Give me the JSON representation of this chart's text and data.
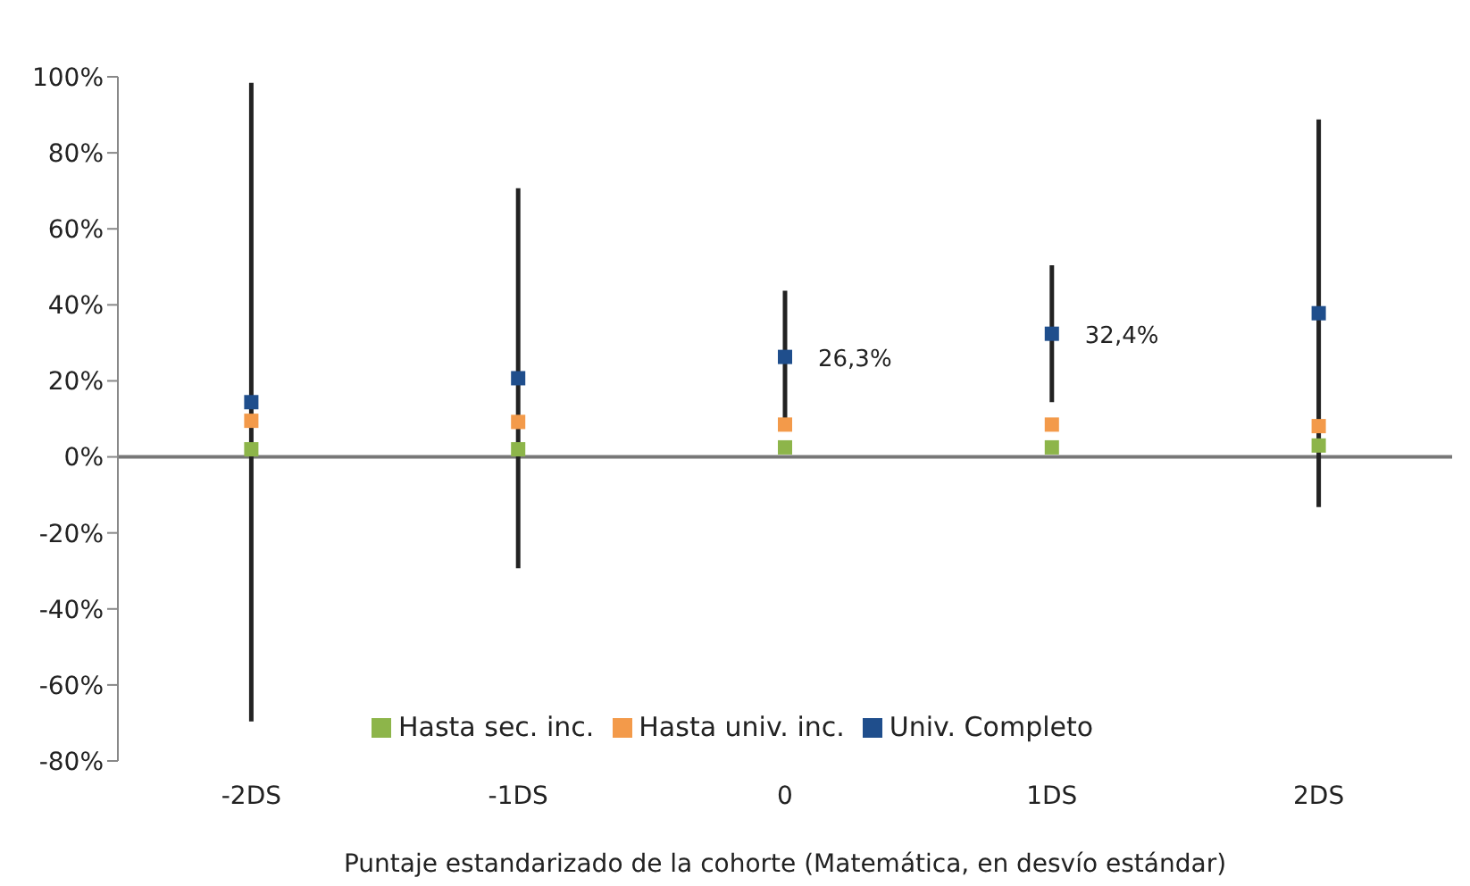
{
  "chart_data": {
    "type": "scatter",
    "xlabel": "Puntaje estandarizado de la cohorte (Matemática, en desvío estándar)",
    "categories": [
      "-2DS",
      "-1DS",
      "0",
      "1DS",
      "2DS"
    ],
    "series": [
      {
        "name": "Hasta sec. inc.",
        "color": "#8db54a",
        "values": [
          2,
          2,
          2.5,
          2.5,
          3
        ]
      },
      {
        "name": "Hasta univ. inc.",
        "color": "#f39a4a",
        "values": [
          9.5,
          9.2,
          8.5,
          8.5,
          8.1
        ]
      },
      {
        "name": "Univ. Completo",
        "color": "#1f4e8c",
        "values": [
          14.4,
          20.7,
          26.3,
          32.4,
          37.8
        ],
        "errors": [
          84,
          50,
          17.4,
          18,
          51
        ],
        "value_labels": [
          null,
          null,
          "26,3%",
          "32,4%",
          null
        ]
      }
    ],
    "ylim": [
      -80,
      100
    ],
    "yticks": [
      {
        "value": -80,
        "label": "-80%"
      },
      {
        "value": -60,
        "label": "-60%"
      },
      {
        "value": -40,
        "label": "-40%"
      },
      {
        "value": -20,
        "label": "-20%"
      },
      {
        "value": 0,
        "label": "0%"
      },
      {
        "value": 20,
        "label": "20%"
      },
      {
        "value": 40,
        "label": "40%"
      },
      {
        "value": 60,
        "label": "60%"
      },
      {
        "value": 80,
        "label": "80%"
      },
      {
        "value": 100,
        "label": "100%"
      }
    ],
    "marker": "square",
    "grid": false,
    "legend": "bottom"
  }
}
